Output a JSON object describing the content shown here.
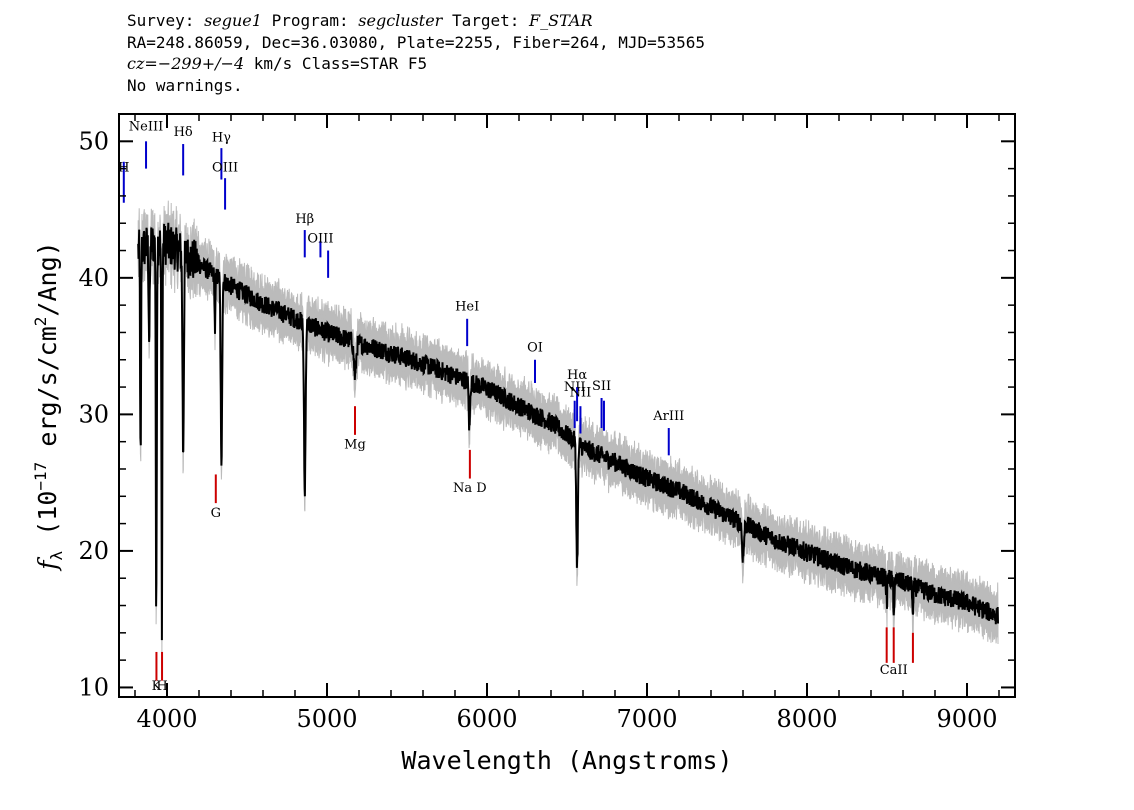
{
  "header": {
    "line1": {
      "survey_label": "Survey: ",
      "survey": "segue1",
      "program_label": " Program: ",
      "program": "segcluster",
      "target_label": " Target: ",
      "target": "F_STAR"
    },
    "line2": "RA=248.86059, Dec=36.03080, Plate=2255, Fiber=264, MJD=53565",
    "line3": {
      "cz_label": "cz=",
      "cz": "−299+/−4",
      "cz_unit": " km/s Class=STAR F5"
    },
    "line4": "No warnings."
  },
  "chart_data": {
    "type": "line",
    "xlabel": "Wavelength (Angstroms)",
    "ylabel_parts": [
      "f",
      "λ",
      " (10",
      "−17",
      " erg/s/cm",
      "2",
      "/Ang)"
    ],
    "xlim": [
      3700,
      9300
    ],
    "ylim": [
      9.3,
      52.0
    ],
    "x_ticks": [
      4000,
      5000,
      6000,
      7000,
      8000,
      9000
    ],
    "y_ticks": [
      10,
      20,
      30,
      40,
      50
    ],
    "x_tick_labels": [
      "4000",
      "5000",
      "6000",
      "7000",
      "8000",
      "9000"
    ],
    "y_tick_labels": [
      "10",
      "20",
      "30",
      "40",
      "50"
    ],
    "continuum": [
      [
        3820,
        42.0
      ],
      [
        3900,
        42.5
      ],
      [
        4000,
        42.5
      ],
      [
        4100,
        41.8
      ],
      [
        4200,
        41.0
      ],
      [
        4300,
        40.2
      ],
      [
        4400,
        39.4
      ],
      [
        4600,
        38.1
      ],
      [
        4800,
        37.0
      ],
      [
        5000,
        36.0
      ],
      [
        5200,
        35.2
      ],
      [
        5400,
        34.5
      ],
      [
        5600,
        33.7
      ],
      [
        5800,
        32.8
      ],
      [
        6000,
        31.9
      ],
      [
        6200,
        30.6
      ],
      [
        6400,
        29.4
      ],
      [
        6600,
        27.6
      ],
      [
        6800,
        26.5
      ],
      [
        7000,
        25.3
      ],
      [
        7200,
        24.4
      ],
      [
        7400,
        23.2
      ],
      [
        7600,
        22.0
      ],
      [
        7800,
        20.8
      ],
      [
        8000,
        19.9
      ],
      [
        8200,
        19.0
      ],
      [
        8400,
        18.3
      ],
      [
        8600,
        17.7
      ],
      [
        8800,
        16.8
      ],
      [
        9000,
        16.2
      ],
      [
        9200,
        15.2
      ]
    ],
    "absorption": [
      {
        "x": 3835,
        "depth": 16.0,
        "w": 4
      },
      {
        "x": 3889,
        "depth": 7.0,
        "w": 5
      },
      {
        "x": 3933,
        "depth": 28.0,
        "w": 4
      },
      {
        "x": 3968,
        "depth": 27.5,
        "w": 4
      },
      {
        "x": 4101,
        "depth": 14.5,
        "w": 6
      },
      {
        "x": 4340,
        "depth": 14.0,
        "w": 6
      },
      {
        "x": 4300,
        "depth": 4.0,
        "w": 4
      },
      {
        "x": 4861,
        "depth": 12.5,
        "w": 7
      },
      {
        "x": 5175,
        "depth": 2.5,
        "w": 10
      },
      {
        "x": 5890,
        "depth": 3.5,
        "w": 6
      },
      {
        "x": 6563,
        "depth": 9.0,
        "w": 7
      },
      {
        "x": 7600,
        "depth": 2.5,
        "w": 8
      },
      {
        "x": 8498,
        "depth": 2.0,
        "w": 4
      },
      {
        "x": 8542,
        "depth": 3.0,
        "w": 4
      },
      {
        "x": 8662,
        "depth": 2.5,
        "w": 4
      }
    ],
    "emission_lines": [
      {
        "label": "H",
        "x": 3730,
        "y0": 45.5,
        "y1": 48.5,
        "ly": 47.8,
        "color": "#0000cc"
      },
      {
        "label": "NeIII",
        "x": 3869,
        "y0": 48.0,
        "y1": 50.0,
        "ly": 50.8,
        "color": "#0000cc"
      },
      {
        "label": "Hδ",
        "x": 4101,
        "y0": 47.5,
        "y1": 49.8,
        "ly": 50.4,
        "color": "#0000cc"
      },
      {
        "label": "Hγ",
        "x": 4340,
        "y0": 47.2,
        "y1": 49.5,
        "ly": 50.0,
        "color": "#0000cc"
      },
      {
        "label": "OIII",
        "x": 4363,
        "y0": 45.0,
        "y1": 47.3,
        "ly": 47.8,
        "color": "#0000cc"
      },
      {
        "label": "Hβ",
        "x": 4861,
        "y0": 41.5,
        "y1": 43.5,
        "ly": 44.0,
        "color": "#0000cc"
      },
      {
        "label": "OIII",
        "x": 4959,
        "y0": 41.5,
        "y1": 42.7,
        "ly": 42.6,
        "color": "#0000cc"
      },
      {
        "label": "OIII",
        "x": 5007,
        "y0": 40.0,
        "y1": 42.0,
        "ly": 0,
        "color": "#0000cc",
        "nolabel": true
      },
      {
        "label": "HeI",
        "x": 5876,
        "y0": 35.0,
        "y1": 37.0,
        "ly": 37.6,
        "color": "#0000cc"
      },
      {
        "label": "OI",
        "x": 6300,
        "y0": 32.3,
        "y1": 34.0,
        "ly": 34.6,
        "color": "#0000cc"
      },
      {
        "label": "NII",
        "x": 6548,
        "y0": 29.0,
        "y1": 31.0,
        "ly": 31.7,
        "color": "#0000cc"
      },
      {
        "label": "Hα",
        "x": 6563,
        "y0": 29.5,
        "y1": 32.0,
        "ly": 32.6,
        "color": "#0000cc"
      },
      {
        "label": "NII",
        "x": 6584,
        "y0": 28.6,
        "y1": 30.6,
        "ly": 31.3,
        "color": "#0000cc"
      },
      {
        "label": "SII",
        "x": 6716,
        "y0": 29.0,
        "y1": 31.2,
        "ly": 31.8,
        "color": "#0000cc"
      },
      {
        "label": "",
        "x": 6731,
        "y0": 28.8,
        "y1": 31.0,
        "ly": 0,
        "color": "#0000cc",
        "nolabel": true
      },
      {
        "label": "ArIII",
        "x": 7136,
        "y0": 27.0,
        "y1": 29.0,
        "ly": 29.6,
        "color": "#0000cc"
      }
    ],
    "absorption_labels": [
      {
        "label": "K",
        "x": 3934,
        "y0": 10.5,
        "y1": 12.6,
        "ly": 9.8,
        "color": "#cc0000"
      },
      {
        "label": "H",
        "x": 3969,
        "y0": 10.5,
        "y1": 12.6,
        "ly": 9.8,
        "color": "#cc0000"
      },
      {
        "label": "G",
        "x": 4305,
        "y0": 23.5,
        "y1": 25.6,
        "ly": 22.5,
        "color": "#cc0000"
      },
      {
        "label": "Mg",
        "x": 5175,
        "y0": 28.5,
        "y1": 30.6,
        "ly": 27.5,
        "color": "#cc0000"
      },
      {
        "label": "Na D",
        "x": 5893,
        "y0": 25.3,
        "y1": 27.4,
        "ly": 24.3,
        "color": "#cc0000"
      },
      {
        "label": "CaII",
        "x": 8542,
        "y0": 11.8,
        "y1": 14.4,
        "ly": 11.0,
        "color": "#cc0000"
      },
      {
        "label": "",
        "x": 8498,
        "y0": 11.8,
        "y1": 14.4,
        "ly": 0,
        "color": "#cc0000",
        "nolabel": true
      },
      {
        "label": "",
        "x": 8662,
        "y0": 11.8,
        "y1": 14.0,
        "ly": 0,
        "color": "#cc0000",
        "nolabel": true
      }
    ],
    "colors": {
      "spectrum": "#000000",
      "error": "#bbbbbb",
      "emission": "#0000cc",
      "absorption": "#cc0000"
    }
  }
}
